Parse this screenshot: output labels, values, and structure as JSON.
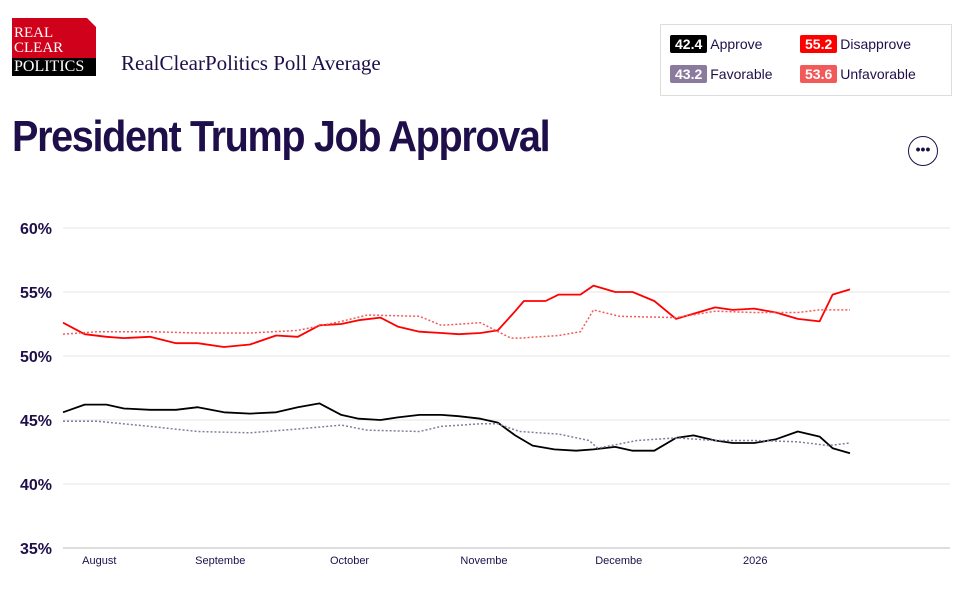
{
  "logo": {
    "line1": "REAL",
    "line2": "CLEAR",
    "line3": "POLITICS"
  },
  "header": {
    "subtitle": "RealClearPolitics Poll Average",
    "title": "President Trump Job Approval",
    "more_label": "•••"
  },
  "legend": [
    {
      "value": "42.4",
      "label": "Approve",
      "color": "#000000"
    },
    {
      "value": "55.2",
      "label": "Disapprove",
      "color": "#ff0000"
    },
    {
      "value": "43.2",
      "label": "Favorable",
      "color": "#8a7a9e"
    },
    {
      "value": "53.6",
      "label": "Unfavorable",
      "color": "#f25a5a"
    }
  ],
  "chart_data": {
    "type": "line",
    "title": "President Trump Job Approval",
    "ylim": [
      35,
      60
    ],
    "xlim": [
      0,
      204
    ],
    "y_ticks": [
      {
        "v": 60,
        "label": "60%"
      },
      {
        "v": 55,
        "label": "55%"
      },
      {
        "v": 50,
        "label": "50%"
      },
      {
        "v": 45,
        "label": "45%"
      },
      {
        "v": 40,
        "label": "40%"
      },
      {
        "v": 35,
        "label": "35%"
      }
    ],
    "x_ticks": [
      {
        "day": 9,
        "label": "August"
      },
      {
        "day": 35,
        "label": "Septembe"
      },
      {
        "day": 66,
        "label": "October"
      },
      {
        "day": 96,
        "label": "Novembe"
      },
      {
        "day": 127,
        "label": "Decembe"
      },
      {
        "day": 161,
        "label": "2026"
      }
    ],
    "series": [
      {
        "name": "Approve",
        "color": "#000000",
        "dashed": false,
        "x": [
          0,
          5,
          10,
          14,
          20,
          26,
          31,
          37,
          43,
          49,
          54,
          59,
          64,
          68,
          73,
          77,
          82,
          87,
          91,
          96,
          100,
          104,
          108,
          113,
          118,
          122,
          127,
          131,
          136,
          141,
          145,
          150,
          154,
          159,
          164,
          169,
          174,
          177,
          181
        ],
        "y": [
          45.6,
          46.2,
          46.2,
          45.9,
          45.8,
          45.8,
          46.0,
          45.6,
          45.5,
          45.6,
          46.0,
          46.3,
          45.4,
          45.1,
          45.0,
          45.2,
          45.4,
          45.4,
          45.3,
          45.1,
          44.8,
          43.8,
          43.0,
          42.7,
          42.6,
          42.7,
          42.9,
          42.6,
          42.6,
          43.6,
          43.8,
          43.4,
          43.2,
          43.2,
          43.5,
          44.1,
          43.7,
          42.8,
          42.4
        ]
      },
      {
        "name": "Disapprove",
        "color": "#ff0000",
        "dashed": false,
        "x": [
          0,
          5,
          10,
          14,
          20,
          26,
          31,
          37,
          43,
          49,
          54,
          59,
          64,
          68,
          73,
          77,
          82,
          87,
          91,
          96,
          100,
          104,
          106,
          111,
          114,
          119,
          122,
          127,
          131,
          136,
          141,
          145,
          150,
          154,
          159,
          164,
          169,
          174,
          177,
          181
        ],
        "y": [
          52.6,
          51.7,
          51.5,
          51.4,
          51.5,
          51.0,
          51.0,
          50.7,
          50.9,
          51.6,
          51.5,
          52.4,
          52.5,
          52.8,
          53.0,
          52.3,
          51.9,
          51.8,
          51.7,
          51.8,
          52.0,
          53.5,
          54.3,
          54.3,
          54.8,
          54.8,
          55.5,
          55.0,
          55.0,
          54.3,
          52.9,
          53.3,
          53.8,
          53.6,
          53.7,
          53.4,
          52.9,
          52.7,
          54.8,
          55.2
        ]
      },
      {
        "name": "Favorable",
        "color": "#8a7a9e",
        "dashed": true,
        "x": [
          0,
          8,
          20,
          31,
          43,
          54,
          64,
          70,
          82,
          87,
          96,
          100,
          105,
          114,
          121,
          123,
          132,
          141,
          150,
          159,
          169,
          176,
          181
        ],
        "y": [
          44.9,
          44.9,
          44.5,
          44.1,
          44.0,
          44.3,
          44.6,
          44.2,
          44.1,
          44.5,
          44.7,
          44.7,
          44.1,
          43.9,
          43.4,
          42.8,
          43.4,
          43.6,
          43.4,
          43.4,
          43.3,
          43.0,
          43.2
        ]
      },
      {
        "name": "Unfavorable",
        "color": "#f25a5a",
        "dashed": true,
        "x": [
          0,
          8,
          20,
          31,
          43,
          54,
          64,
          70,
          82,
          87,
          96,
          103,
          105,
          114,
          119,
          122,
          128,
          141,
          150,
          159,
          169,
          174,
          181
        ],
        "y": [
          51.7,
          51.9,
          51.9,
          51.8,
          51.8,
          52.0,
          52.7,
          53.2,
          53.1,
          52.4,
          52.6,
          51.4,
          51.4,
          51.6,
          51.9,
          53.6,
          53.1,
          53.0,
          53.5,
          53.4,
          53.4,
          53.6,
          53.6
        ]
      }
    ]
  }
}
